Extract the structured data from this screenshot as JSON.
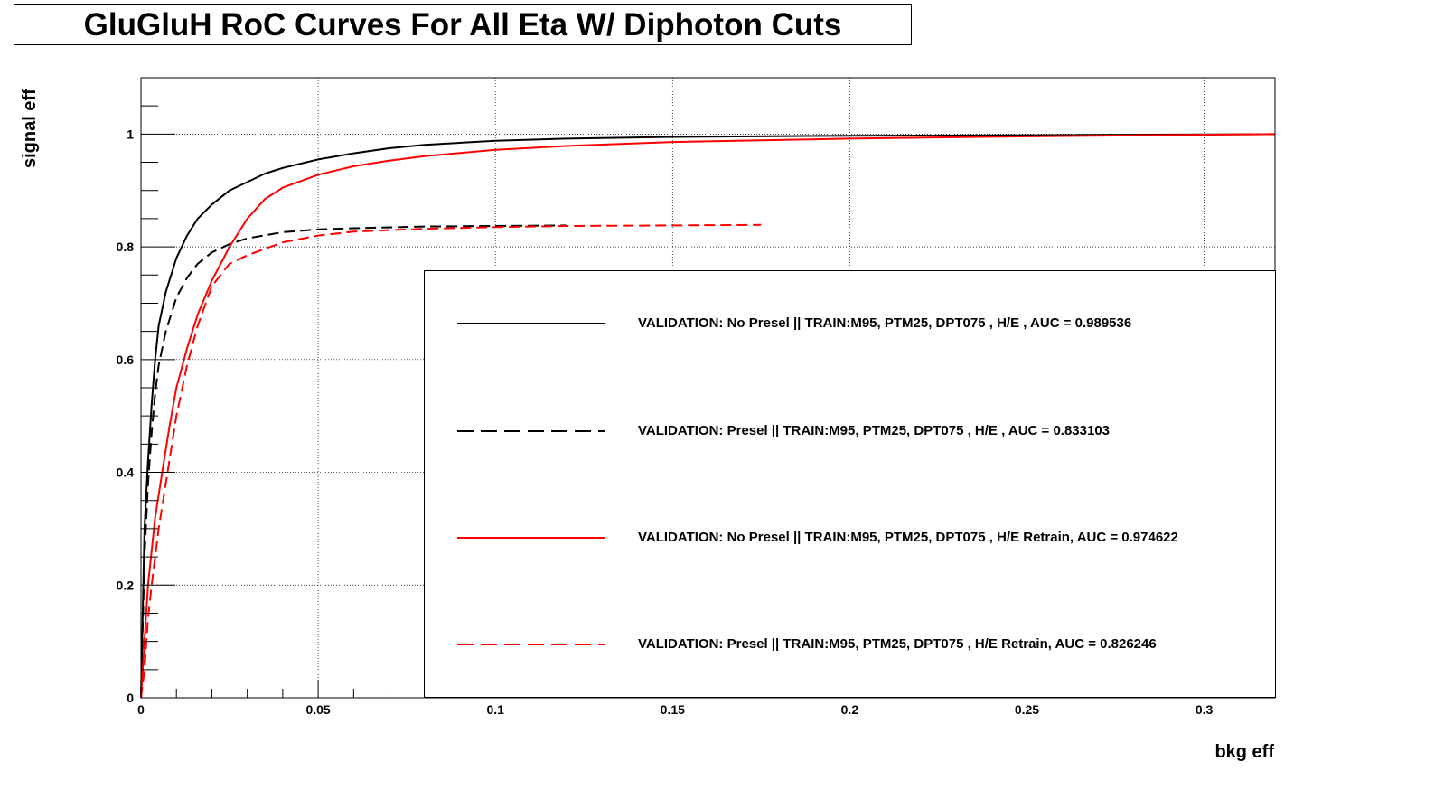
{
  "chart_data": {
    "type": "line",
    "title": "GluGluH RoC Curves For All Eta W/ Diphoton Cuts",
    "xlabel": "bkg eff",
    "ylabel": "signal eff",
    "xlim": [
      0,
      0.32
    ],
    "ylim": [
      0,
      1.1
    ],
    "grid": true,
    "legend_placement": "bottom-right",
    "x_ticks": [
      "0",
      "0.05",
      "0.1",
      "0.15",
      "0.2",
      "0.25",
      "0.3"
    ],
    "y_ticks": [
      "0",
      "0.2",
      "0.4",
      "0.6",
      "0.8",
      "1"
    ],
    "series": [
      {
        "name": "VALIDATION: No Presel || TRAIN:M95, PTM25, DPT075 , H/E , AUC = 0.989536",
        "color": "#000000",
        "dashed": false,
        "points": [
          [
            0,
            0
          ],
          [
            0.001,
            0.3
          ],
          [
            0.002,
            0.42
          ],
          [
            0.003,
            0.52
          ],
          [
            0.004,
            0.6
          ],
          [
            0.005,
            0.66
          ],
          [
            0.007,
            0.72
          ],
          [
            0.01,
            0.78
          ],
          [
            0.013,
            0.82
          ],
          [
            0.016,
            0.85
          ],
          [
            0.02,
            0.875
          ],
          [
            0.025,
            0.9
          ],
          [
            0.03,
            0.915
          ],
          [
            0.035,
            0.93
          ],
          [
            0.04,
            0.94
          ],
          [
            0.05,
            0.955
          ],
          [
            0.06,
            0.966
          ],
          [
            0.07,
            0.975
          ],
          [
            0.08,
            0.981
          ],
          [
            0.1,
            0.988
          ],
          [
            0.12,
            0.992
          ],
          [
            0.15,
            0.995
          ],
          [
            0.2,
            0.997
          ],
          [
            0.25,
            0.998
          ],
          [
            0.32,
            1.0
          ]
        ]
      },
      {
        "name": "VALIDATION: Presel || TRAIN:M95, PTM25, DPT075 , H/E , AUC = 0.833103",
        "color": "#000000",
        "dashed": true,
        "points": [
          [
            0,
            0
          ],
          [
            0.001,
            0.25
          ],
          [
            0.002,
            0.38
          ],
          [
            0.003,
            0.47
          ],
          [
            0.004,
            0.54
          ],
          [
            0.005,
            0.59
          ],
          [
            0.007,
            0.65
          ],
          [
            0.01,
            0.71
          ],
          [
            0.013,
            0.745
          ],
          [
            0.016,
            0.77
          ],
          [
            0.02,
            0.79
          ],
          [
            0.025,
            0.805
          ],
          [
            0.03,
            0.815
          ],
          [
            0.04,
            0.826
          ],
          [
            0.05,
            0.831
          ],
          [
            0.06,
            0.833
          ],
          [
            0.08,
            0.836
          ],
          [
            0.1,
            0.837
          ],
          [
            0.12,
            0.838
          ]
        ]
      },
      {
        "name": "VALIDATION: No Presel || TRAIN:M95, PTM25, DPT075 , H/E Retrain, AUC = 0.974622",
        "color": "#ff0000",
        "dashed": false,
        "points": [
          [
            0,
            0
          ],
          [
            0.001,
            0.1
          ],
          [
            0.002,
            0.2
          ],
          [
            0.004,
            0.32
          ],
          [
            0.006,
            0.4
          ],
          [
            0.008,
            0.48
          ],
          [
            0.01,
            0.55
          ],
          [
            0.013,
            0.62
          ],
          [
            0.016,
            0.68
          ],
          [
            0.02,
            0.74
          ],
          [
            0.025,
            0.8
          ],
          [
            0.03,
            0.85
          ],
          [
            0.035,
            0.885
          ],
          [
            0.04,
            0.905
          ],
          [
            0.05,
            0.928
          ],
          [
            0.06,
            0.943
          ],
          [
            0.07,
            0.953
          ],
          [
            0.08,
            0.961
          ],
          [
            0.1,
            0.972
          ],
          [
            0.12,
            0.979
          ],
          [
            0.15,
            0.986
          ],
          [
            0.2,
            0.992
          ],
          [
            0.25,
            0.996
          ],
          [
            0.32,
            1.0
          ]
        ]
      },
      {
        "name": "VALIDATION: Presel || TRAIN:M95, PTM25, DPT075 , H/E Retrain, AUC = 0.826246",
        "color": "#ff0000",
        "dashed": true,
        "points": [
          [
            0,
            0
          ],
          [
            0.001,
            0.05
          ],
          [
            0.002,
            0.14
          ],
          [
            0.003,
            0.2
          ],
          [
            0.005,
            0.3
          ],
          [
            0.008,
            0.42
          ],
          [
            0.01,
            0.5
          ],
          [
            0.013,
            0.59
          ],
          [
            0.016,
            0.66
          ],
          [
            0.02,
            0.73
          ],
          [
            0.025,
            0.77
          ],
          [
            0.03,
            0.785
          ],
          [
            0.04,
            0.808
          ],
          [
            0.05,
            0.82
          ],
          [
            0.06,
            0.827
          ],
          [
            0.08,
            0.832
          ],
          [
            0.1,
            0.835
          ],
          [
            0.12,
            0.837
          ],
          [
            0.15,
            0.838
          ],
          [
            0.175,
            0.839
          ]
        ]
      }
    ]
  }
}
